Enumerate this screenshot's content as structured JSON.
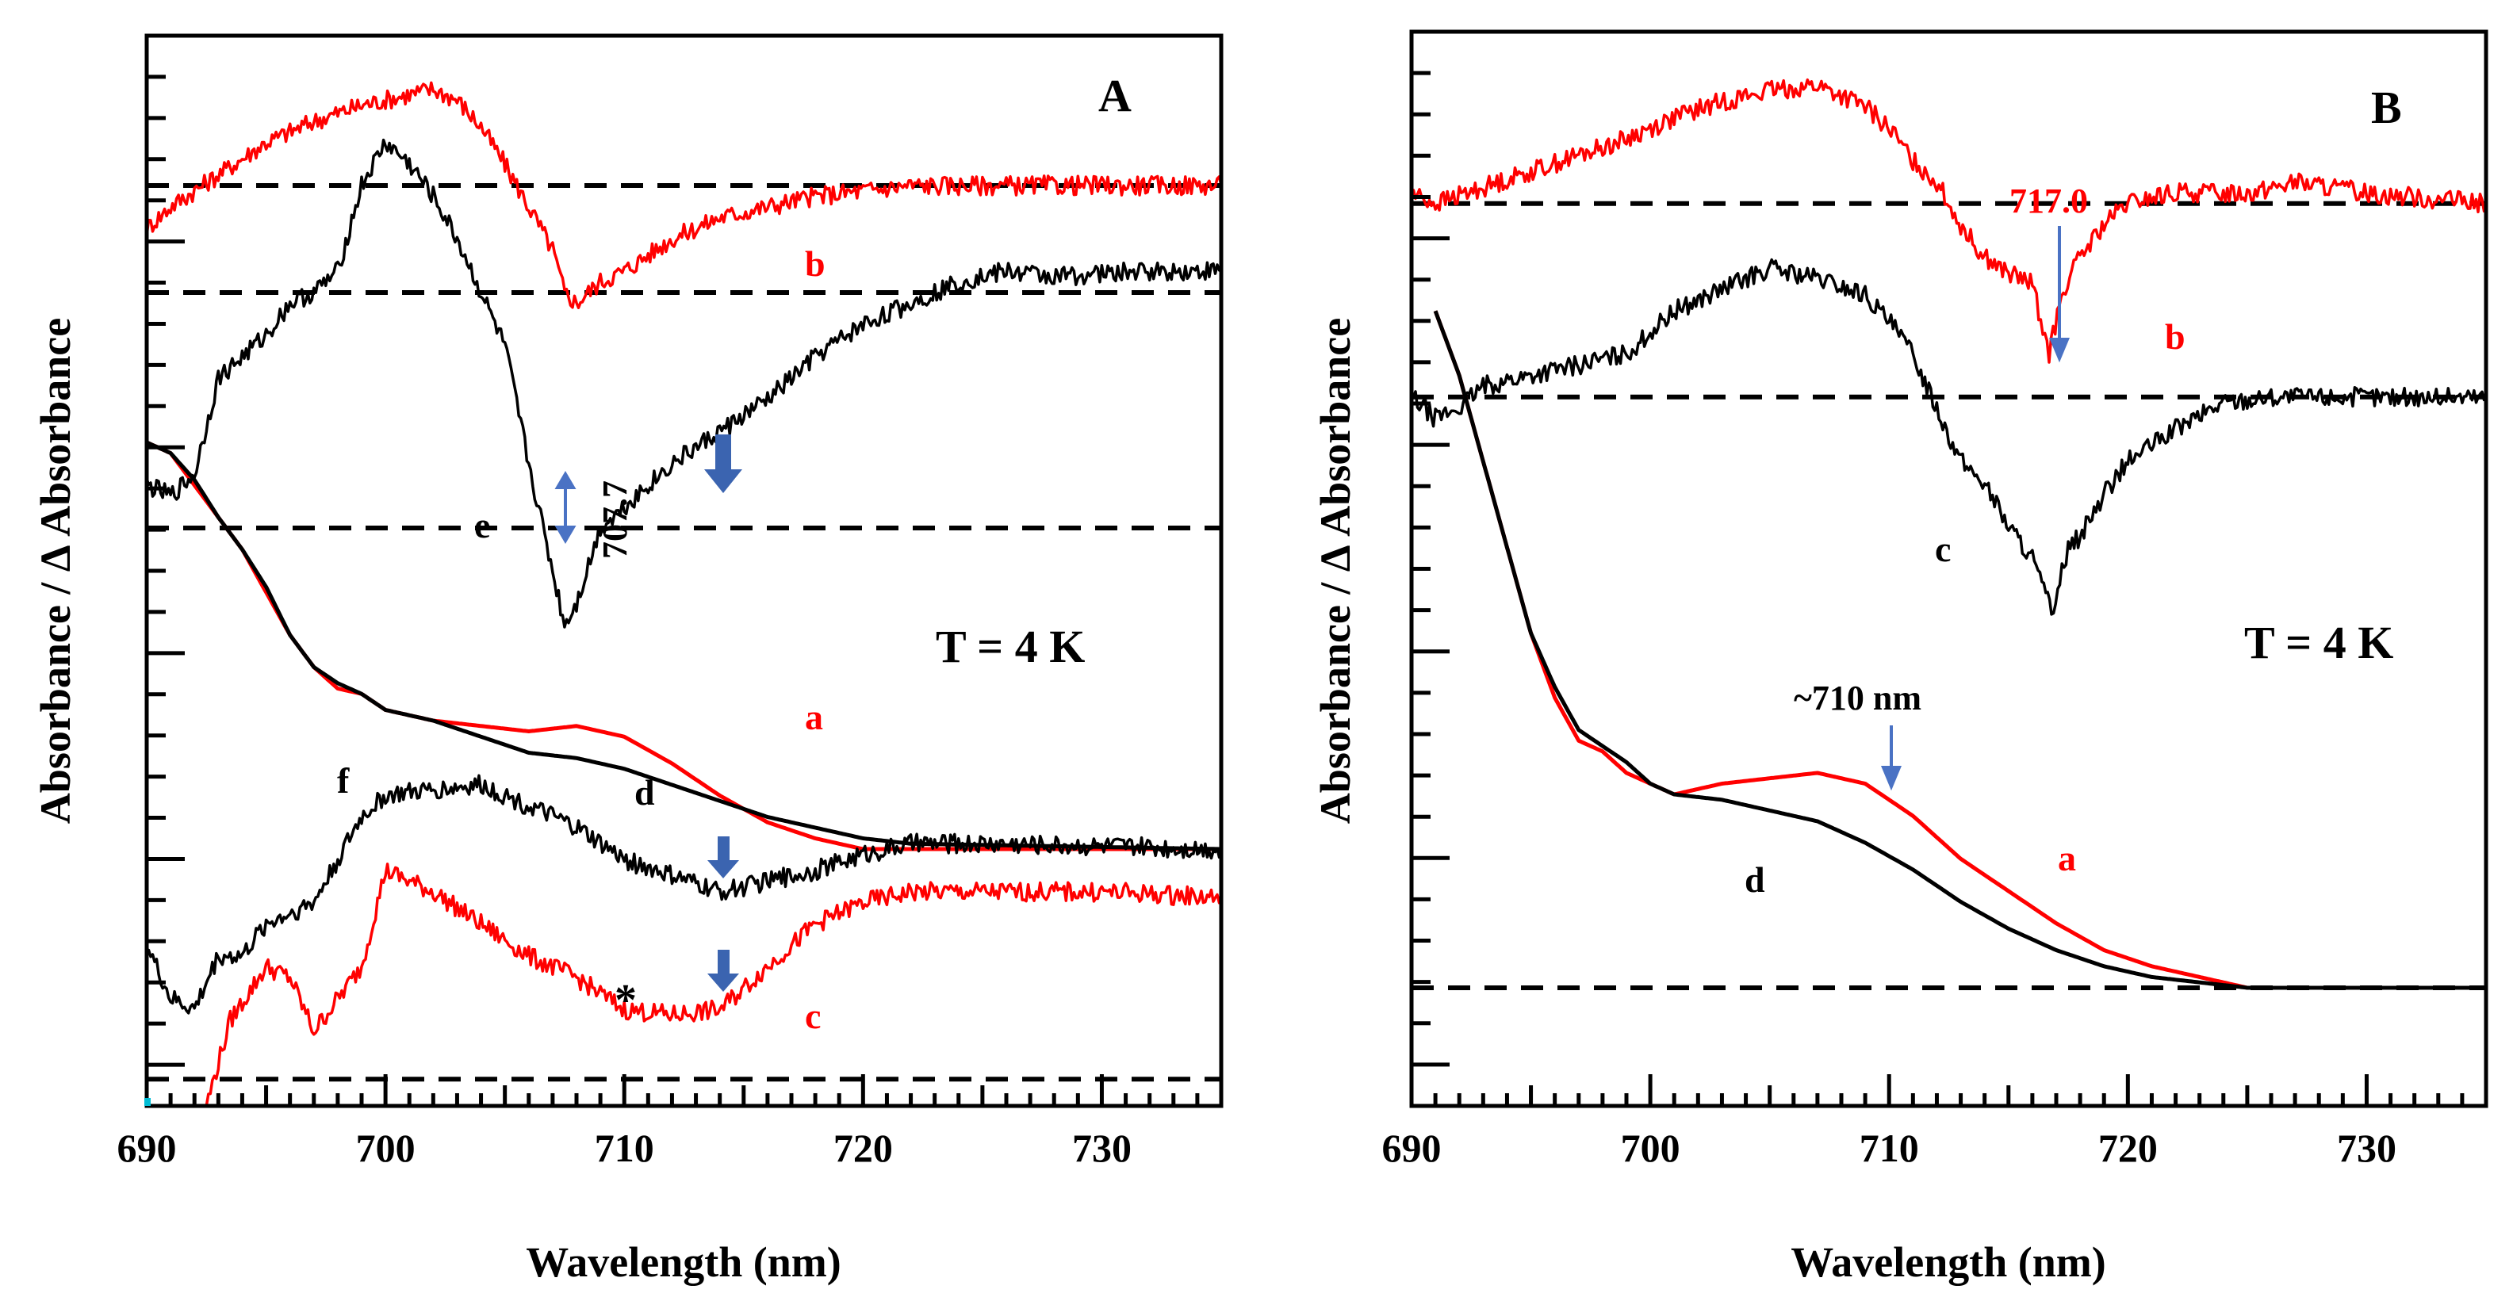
{
  "chart_data": [
    {
      "panel": "A",
      "type": "line",
      "title": "",
      "xlabel": "Wavelength (nm)",
      "ylabel": "Absorbance / Δ Absorbance",
      "xlim": [
        690,
        735
      ],
      "ylim": [
        0,
        1
      ],
      "xticks": [
        "690",
        "700",
        "710",
        "720",
        "730"
      ],
      "annotations": {
        "temperature": "T = 4 K",
        "peak": "707.7",
        "asterisk": "*"
      },
      "baselines": [
        0.025,
        0.54,
        0.76,
        0.86
      ],
      "series": [
        {
          "name": "a",
          "color": "#ff0000",
          "points": [
            [
              690,
              0.62
            ],
            [
              691,
              0.61
            ],
            [
              692,
              0.58
            ],
            [
              693,
              0.55
            ],
            [
              694,
              0.52
            ],
            [
              695,
              0.48
            ],
            [
              696,
              0.44
            ],
            [
              697,
              0.41
            ],
            [
              698,
              0.39
            ],
            [
              699,
              0.385
            ],
            [
              700,
              0.37
            ],
            [
              702,
              0.36
            ],
            [
              704,
              0.355
            ],
            [
              706,
              0.35
            ],
            [
              708,
              0.355
            ],
            [
              710,
              0.345
            ],
            [
              712,
              0.32
            ],
            [
              714,
              0.29
            ],
            [
              716,
              0.265
            ],
            [
              718,
              0.25
            ],
            [
              720,
              0.24
            ],
            [
              722,
              0.24
            ],
            [
              735,
              0.24
            ]
          ]
        },
        {
          "name": "b",
          "color": "#ff0000",
          "points": [
            [
              690,
              0.82
            ],
            [
              691,
              0.84
            ],
            [
              693,
              0.87
            ],
            [
              695,
              0.9
            ],
            [
              697,
              0.92
            ],
            [
              699,
              0.935
            ],
            [
              700,
              0.94
            ],
            [
              701,
              0.945
            ],
            [
              702,
              0.95
            ],
            [
              703,
              0.94
            ],
            [
              704,
              0.915
            ],
            [
              705,
              0.88
            ],
            [
              706,
              0.84
            ],
            [
              707,
              0.8
            ],
            [
              707.5,
              0.76
            ],
            [
              708,
              0.75
            ],
            [
              709,
              0.77
            ],
            [
              710,
              0.78
            ],
            [
              712,
              0.81
            ],
            [
              714,
              0.83
            ],
            [
              716,
              0.84
            ],
            [
              718,
              0.85
            ],
            [
              722,
              0.86
            ],
            [
              735,
              0.86
            ]
          ]
        },
        {
          "name": "c",
          "color": "#ff0000",
          "points": [
            [
              692.5,
              0.0
            ],
            [
              693.5,
              0.08
            ],
            [
              695,
              0.13
            ],
            [
              696,
              0.12
            ],
            [
              697,
              0.07
            ],
            [
              698,
              0.1
            ],
            [
              699,
              0.13
            ],
            [
              700,
              0.22
            ],
            [
              702,
              0.2
            ],
            [
              704,
              0.17
            ],
            [
              706,
              0.14
            ],
            [
              708,
              0.12
            ],
            [
              710,
              0.09
            ],
            [
              712,
              0.085
            ],
            [
              714,
              0.09
            ],
            [
              716,
              0.13
            ],
            [
              718,
              0.17
            ],
            [
              720,
              0.19
            ],
            [
              722,
              0.2
            ],
            [
              726,
              0.2
            ],
            [
              730,
              0.2
            ],
            [
              735,
              0.195
            ]
          ]
        },
        {
          "name": "d",
          "color": "#000000",
          "points": [
            [
              690,
              0.62
            ],
            [
              691,
              0.61
            ],
            [
              692,
              0.585
            ],
            [
              693,
              0.55
            ],
            [
              694,
              0.52
            ],
            [
              695,
              0.485
            ],
            [
              696,
              0.44
            ],
            [
              697,
              0.41
            ],
            [
              698,
              0.395
            ],
            [
              699,
              0.385
            ],
            [
              700,
              0.37
            ],
            [
              702,
              0.36
            ],
            [
              704,
              0.345
            ],
            [
              706,
              0.33
            ],
            [
              708,
              0.325
            ],
            [
              710,
              0.315
            ],
            [
              712,
              0.3
            ],
            [
              714,
              0.285
            ],
            [
              716,
              0.27
            ],
            [
              718,
              0.26
            ],
            [
              720,
              0.25
            ],
            [
              722,
              0.245
            ],
            [
              735,
              0.24
            ]
          ]
        },
        {
          "name": "e",
          "color": "#000000",
          "points": [
            [
              690,
              0.58
            ],
            [
              691,
              0.57
            ],
            [
              692,
              0.59
            ],
            [
              693,
              0.68
            ],
            [
              694,
              0.7
            ],
            [
              695,
              0.72
            ],
            [
              696,
              0.75
            ],
            [
              697,
              0.76
            ],
            [
              698,
              0.78
            ],
            [
              699,
              0.86
            ],
            [
              700,
              0.9
            ],
            [
              701,
              0.88
            ],
            [
              702,
              0.85
            ],
            [
              703,
              0.81
            ],
            [
              704,
              0.76
            ],
            [
              705,
              0.71
            ],
            [
              706,
              0.6
            ],
            [
              707,
              0.5
            ],
            [
              707.5,
              0.45
            ],
            [
              708,
              0.47
            ],
            [
              709,
              0.54
            ],
            [
              710,
              0.56
            ],
            [
              712,
              0.6
            ],
            [
              714,
              0.63
            ],
            [
              716,
              0.66
            ],
            [
              718,
              0.7
            ],
            [
              720,
              0.73
            ],
            [
              722,
              0.75
            ],
            [
              724,
              0.77
            ],
            [
              726,
              0.78
            ],
            [
              728,
              0.775
            ],
            [
              732,
              0.78
            ],
            [
              735,
              0.78
            ]
          ]
        },
        {
          "name": "f",
          "color": "#000000",
          "points": [
            [
              690,
              0.15
            ],
            [
              691,
              0.1
            ],
            [
              692,
              0.09
            ],
            [
              693,
              0.14
            ],
            [
              694,
              0.14
            ],
            [
              695,
              0.17
            ],
            [
              697,
              0.19
            ],
            [
              698,
              0.23
            ],
            [
              699,
              0.27
            ],
            [
              700,
              0.29
            ],
            [
              702,
              0.295
            ],
            [
              704,
              0.3
            ],
            [
              706,
              0.28
            ],
            [
              708,
              0.26
            ],
            [
              710,
              0.23
            ],
            [
              712,
              0.215
            ],
            [
              714,
              0.2
            ],
            [
              716,
              0.21
            ],
            [
              718,
              0.22
            ],
            [
              720,
              0.235
            ],
            [
              722,
              0.245
            ],
            [
              726,
              0.245
            ],
            [
              735,
              0.24
            ]
          ]
        }
      ],
      "labels": {
        "a": "a",
        "b": "b",
        "c": "c",
        "d": "d",
        "e": "e",
        "f": "f"
      }
    },
    {
      "panel": "B",
      "type": "line",
      "title": "",
      "xlabel": "Wavelength (nm)",
      "ylabel": "Absorbance / Δ Absorbance",
      "xlim": [
        690,
        735
      ],
      "ylim": [
        0,
        1
      ],
      "xticks": [
        "690",
        "700",
        "710",
        "720",
        "730"
      ],
      "annotations": {
        "temperature": "T = 4 K",
        "peak_b": "717.0",
        "peak_a": "~710 nm"
      },
      "baselines": [
        0.11,
        0.66,
        0.84
      ],
      "series": [
        {
          "name": "a",
          "color": "#ff0000",
          "points": [
            [
              691,
              0.74
            ],
            [
              692,
              0.68
            ],
            [
              693,
              0.6
            ],
            [
              694,
              0.52
            ],
            [
              695,
              0.44
            ],
            [
              696,
              0.38
            ],
            [
              697,
              0.34
            ],
            [
              698,
              0.33
            ],
            [
              699,
              0.31
            ],
            [
              700,
              0.3
            ],
            [
              701,
              0.29
            ],
            [
              703,
              0.3
            ],
            [
              705,
              0.305
            ],
            [
              707,
              0.31
            ],
            [
              709,
              0.3
            ],
            [
              711,
              0.27
            ],
            [
              713,
              0.23
            ],
            [
              715,
              0.2
            ],
            [
              717,
              0.17
            ],
            [
              719,
              0.145
            ],
            [
              721,
              0.13
            ],
            [
              723,
              0.12
            ],
            [
              725,
              0.11
            ],
            [
              735,
              0.11
            ]
          ]
        },
        {
          "name": "b",
          "color": "#ff0000",
          "points": [
            [
              690,
              0.85
            ],
            [
              691,
              0.84
            ],
            [
              693,
              0.855
            ],
            [
              695,
              0.87
            ],
            [
              697,
              0.885
            ],
            [
              699,
              0.9
            ],
            [
              701,
              0.92
            ],
            [
              703,
              0.935
            ],
            [
              705,
              0.945
            ],
            [
              707,
              0.95
            ],
            [
              709,
              0.93
            ],
            [
              710,
              0.91
            ],
            [
              711,
              0.88
            ],
            [
              712,
              0.86
            ],
            [
              713,
              0.82
            ],
            [
              714,
              0.79
            ],
            [
              715,
              0.775
            ],
            [
              716,
              0.765
            ],
            [
              716.7,
              0.7
            ],
            [
              717.3,
              0.76
            ],
            [
              718,
              0.79
            ],
            [
              719,
              0.82
            ],
            [
              720,
              0.84
            ],
            [
              722,
              0.85
            ],
            [
              725,
              0.85
            ],
            [
              727,
              0.86
            ],
            [
              730,
              0.85
            ],
            [
              735,
              0.84
            ]
          ]
        },
        {
          "name": "c",
          "color": "#000000",
          "points": [
            [
              690,
              0.66
            ],
            [
              691,
              0.64
            ],
            [
              692,
              0.65
            ],
            [
              693,
              0.67
            ],
            [
              695,
              0.68
            ],
            [
              697,
              0.69
            ],
            [
              699,
              0.7
            ],
            [
              701,
              0.74
            ],
            [
              703,
              0.76
            ],
            [
              705,
              0.78
            ],
            [
              707,
              0.77
            ],
            [
              709,
              0.755
            ],
            [
              710,
              0.73
            ],
            [
              711,
              0.7
            ],
            [
              712,
              0.65
            ],
            [
              713,
              0.6
            ],
            [
              714,
              0.58
            ],
            [
              715,
              0.54
            ],
            [
              716,
              0.51
            ],
            [
              716.8,
              0.46
            ],
            [
              717.5,
              0.52
            ],
            [
              718,
              0.53
            ],
            [
              719,
              0.57
            ],
            [
              720,
              0.6
            ],
            [
              722,
              0.63
            ],
            [
              724,
              0.655
            ],
            [
              726,
              0.66
            ],
            [
              730,
              0.66
            ],
            [
              735,
              0.66
            ]
          ]
        },
        {
          "name": "d",
          "color": "#000000",
          "points": [
            [
              691,
              0.74
            ],
            [
              692,
              0.68
            ],
            [
              693,
              0.6
            ],
            [
              694,
              0.52
            ],
            [
              695,
              0.44
            ],
            [
              696,
              0.39
            ],
            [
              697,
              0.35
            ],
            [
              698,
              0.335
            ],
            [
              699,
              0.32
            ],
            [
              700,
              0.3
            ],
            [
              701,
              0.29
            ],
            [
              703,
              0.285
            ],
            [
              705,
              0.275
            ],
            [
              707,
              0.265
            ],
            [
              709,
              0.245
            ],
            [
              711,
              0.22
            ],
            [
              713,
              0.19
            ],
            [
              715,
              0.165
            ],
            [
              717,
              0.145
            ],
            [
              719,
              0.13
            ],
            [
              721,
              0.12
            ],
            [
              723,
              0.115
            ],
            [
              725,
              0.11
            ],
            [
              735,
              0.11
            ]
          ]
        }
      ],
      "labels": {
        "a": "a",
        "b": "b",
        "c": "c",
        "d": "d"
      }
    }
  ]
}
